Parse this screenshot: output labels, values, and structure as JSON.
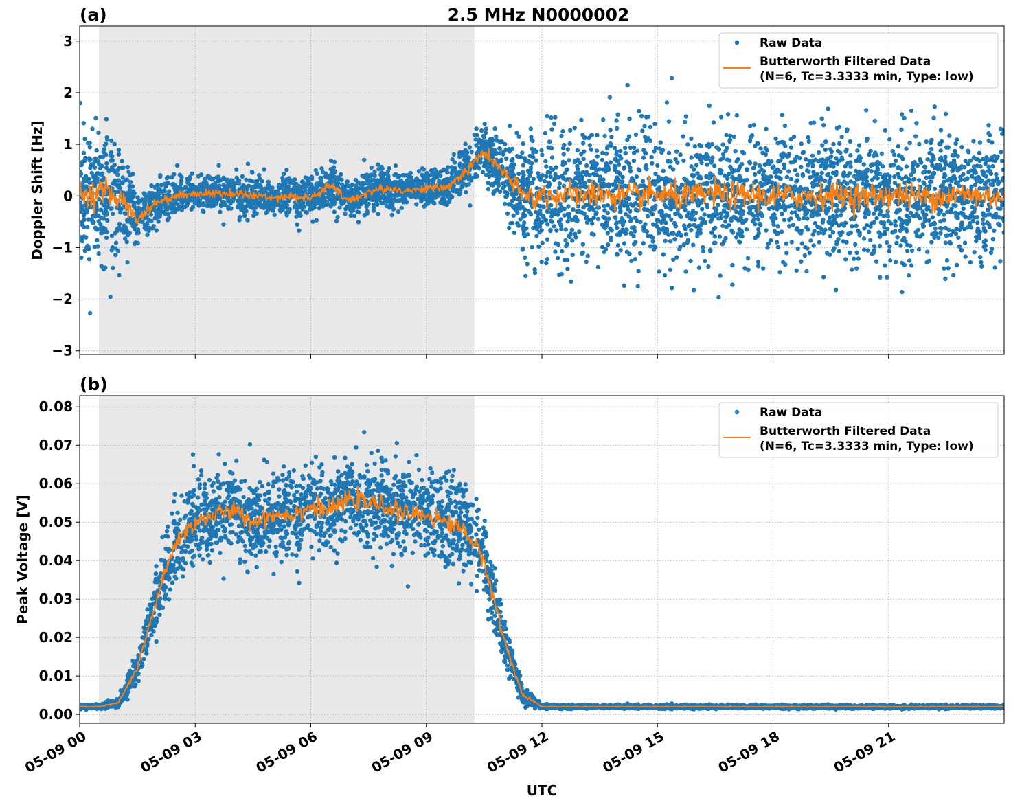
{
  "title": "2.5 MHz N0000002",
  "xlabel": "UTC",
  "colors": {
    "raw": "#1f77b4",
    "filtered": "#ff7f0e",
    "shade": "#e8e8e8",
    "grid": "#b0b0b0"
  },
  "chart_data": [
    {
      "type": "scatter+line",
      "panel_label": "(a)",
      "ylabel": "Doppler Shift [Hz]",
      "xlim_hours": [
        0,
        24
      ],
      "ylim": [
        -3.07,
        3.29
      ],
      "yticks": [
        -3,
        -2,
        -1,
        0,
        1,
        2,
        3
      ],
      "ytick_labels": [
        "−3",
        "−2",
        "−1",
        "0",
        "1",
        "2",
        "3"
      ],
      "xticks_hours": [
        0,
        3,
        6,
        9,
        12,
        15,
        18,
        21
      ],
      "grid": true,
      "legend_placement": "upper-right",
      "legend": [
        "Raw Data",
        "Butterworth Filtered Data",
        "(N=6, Tc=3.3333 min, Type: low)"
      ],
      "shaded_region_hours": [
        0.5,
        10.25
      ],
      "x_hours": [
        0,
        0.5,
        1,
        1.5,
        2,
        2.5,
        3,
        3.5,
        4,
        4.5,
        5,
        5.5,
        6,
        6.5,
        7,
        7.5,
        8,
        8.5,
        9,
        9.5,
        10,
        10.5,
        11,
        11.5,
        12,
        12.5,
        13,
        13.5,
        14,
        14.5,
        15,
        15.5,
        16,
        16.5,
        17,
        17.5,
        18,
        18.5,
        19,
        19.5,
        20,
        20.5,
        21,
        21.5,
        22,
        22.5,
        23,
        23.5,
        24
      ],
      "filtered": [
        0.0,
        0.05,
        0.0,
        -0.45,
        -0.12,
        0.0,
        0.05,
        0.05,
        0.05,
        0.0,
        -0.02,
        0.0,
        -0.05,
        0.2,
        -0.1,
        0.08,
        0.15,
        0.1,
        0.15,
        0.15,
        0.45,
        0.85,
        0.45,
        0.0,
        0.0,
        0.02,
        0.0,
        0.05,
        -0.02,
        0.0,
        0.03,
        -0.02,
        0.0,
        0.05,
        0.0,
        0.02,
        -0.02,
        0.0,
        0.0,
        0.02,
        0.0,
        -0.02,
        0.03,
        0.0,
        -0.02,
        0.0,
        0.03,
        0.0,
        0.0
      ],
      "raw_spread": [
        1.2,
        1.2,
        1.0,
        0.5,
        0.4,
        0.35,
        0.3,
        0.35,
        0.35,
        0.35,
        0.35,
        0.35,
        0.35,
        0.4,
        0.4,
        0.35,
        0.35,
        0.3,
        0.3,
        0.3,
        0.45,
        0.45,
        0.6,
        1.0,
        1.1,
        1.1,
        1.1,
        1.1,
        1.1,
        1.1,
        1.1,
        1.1,
        1.1,
        1.1,
        1.1,
        1.1,
        1.1,
        1.1,
        1.1,
        1.1,
        1.1,
        1.1,
        1.1,
        1.1,
        1.1,
        1.1,
        1.1,
        1.1,
        1.1
      ]
    },
    {
      "type": "scatter+line",
      "panel_label": "(b)",
      "ylabel": "Peak Voltage [V]",
      "xlim_hours": [
        0,
        24
      ],
      "ylim": [
        -0.0023,
        0.0829
      ],
      "yticks": [
        0,
        0.01,
        0.02,
        0.03,
        0.04,
        0.05,
        0.06,
        0.07,
        0.08
      ],
      "ytick_labels": [
        "0.00",
        "0.01",
        "0.02",
        "0.03",
        "0.04",
        "0.05",
        "0.06",
        "0.07",
        "0.08"
      ],
      "xticks_hours": [
        0,
        3,
        6,
        9,
        12,
        15,
        18,
        21
      ],
      "xtick_labels": [
        "05-09 00",
        "05-09 03",
        "05-09 06",
        "05-09 09",
        "05-09 12",
        "05-09 15",
        "05-09 18",
        "05-09 21"
      ],
      "grid": true,
      "legend_placement": "upper-right",
      "legend": [
        "Raw Data",
        "Butterworth Filtered Data",
        "(N=6, Tc=3.3333 min, Type: low)"
      ],
      "shaded_region_hours": [
        0.5,
        10.25
      ],
      "x_hours": [
        0,
        0.5,
        1,
        1.5,
        2,
        2.5,
        3,
        3.5,
        4,
        4.5,
        5,
        5.5,
        6,
        6.5,
        7,
        7.5,
        8,
        8.5,
        9,
        9.5,
        10,
        10.5,
        11,
        11.5,
        12,
        12.5,
        13,
        13.5,
        14,
        14.5,
        15,
        15.5,
        16,
        16.5,
        17,
        17.5,
        18,
        18.5,
        19,
        19.5,
        20,
        20.5,
        21,
        21.5,
        22,
        22.5,
        23,
        23.5,
        24
      ],
      "filtered": [
        0.002,
        0.002,
        0.003,
        0.012,
        0.03,
        0.045,
        0.05,
        0.052,
        0.053,
        0.05,
        0.052,
        0.052,
        0.054,
        0.053,
        0.056,
        0.055,
        0.054,
        0.052,
        0.052,
        0.05,
        0.048,
        0.04,
        0.02,
        0.005,
        0.002,
        0.002,
        0.002,
        0.002,
        0.002,
        0.002,
        0.002,
        0.002,
        0.002,
        0.002,
        0.002,
        0.002,
        0.002,
        0.002,
        0.002,
        0.002,
        0.002,
        0.002,
        0.002,
        0.002,
        0.002,
        0.002,
        0.002,
        0.002,
        0.002
      ],
      "raw_spread": [
        0.0005,
        0.0005,
        0.001,
        0.004,
        0.008,
        0.01,
        0.01,
        0.01,
        0.01,
        0.01,
        0.01,
        0.01,
        0.01,
        0.01,
        0.01,
        0.01,
        0.01,
        0.01,
        0.01,
        0.01,
        0.01,
        0.009,
        0.006,
        0.002,
        0.0005,
        0.0004,
        0.0004,
        0.0004,
        0.0004,
        0.0004,
        0.0004,
        0.0004,
        0.0004,
        0.0004,
        0.0004,
        0.0004,
        0.0004,
        0.0004,
        0.0004,
        0.0004,
        0.0004,
        0.0004,
        0.0004,
        0.0004,
        0.0004,
        0.0004,
        0.0004,
        0.0004,
        0.0004
      ]
    }
  ]
}
